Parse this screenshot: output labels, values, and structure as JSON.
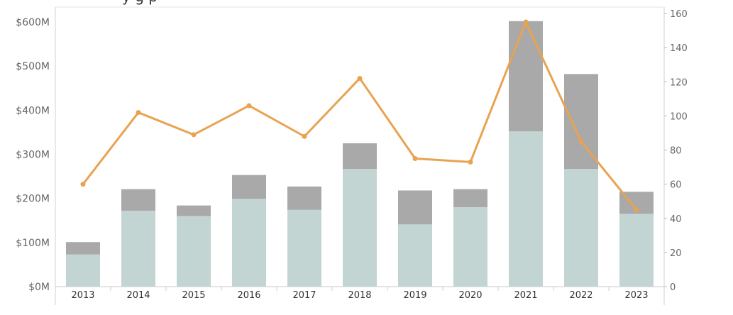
{
  "chart_data": {
    "type": "bar",
    "title": "",
    "categories": [
      "2013",
      "2014",
      "2015",
      "2016",
      "2017",
      "2018",
      "2019",
      "2020",
      "2021",
      "2022",
      "2023"
    ],
    "series": [
      {
        "values": [
          73,
          172,
          160,
          199,
          174,
          267,
          141,
          180,
          352,
          267,
          165
        ],
        "color": "#c3d5d3"
      },
      {
        "values": [
          28,
          49,
          24,
          54,
          53,
          58,
          77,
          41,
          250,
          215,
          50
        ],
        "color": "#a9a9a9"
      },
      {
        "type": "line",
        "axis": "right",
        "values": [
          60,
          102,
          89,
          106,
          88,
          122,
          75,
          73,
          155,
          85,
          45
        ],
        "color": "#e8a352"
      }
    ],
    "y_left": {
      "min": 0,
      "max": 600,
      "ticks": [
        0,
        100,
        200,
        300,
        400,
        500,
        600
      ],
      "tick_labels": [
        "$0M",
        "$100M",
        "$200M",
        "$300M",
        "$400M",
        "$500M",
        "$600M"
      ]
    },
    "y_right": {
      "min": 0,
      "max": 160,
      "ticks": [
        0,
        20,
        40,
        60,
        80,
        100,
        120,
        140,
        160
      ],
      "tick_labels": [
        "0",
        "20",
        "40",
        "60",
        "80",
        "100",
        "120",
        "140",
        "160"
      ]
    },
    "grid": false,
    "legend": "none"
  }
}
